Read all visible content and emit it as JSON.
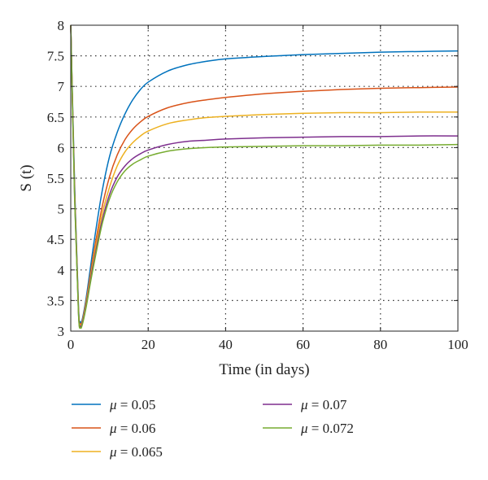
{
  "chart_data": {
    "type": "line",
    "xlabel": "Time (in days)",
    "ylabel": "S (t)",
    "xlim": [
      0,
      100
    ],
    "ylim": [
      3,
      8
    ],
    "x_ticks": [
      0,
      20,
      40,
      60,
      80,
      100
    ],
    "y_ticks": [
      3,
      3.5,
      4,
      4.5,
      5,
      5.5,
      6,
      6.5,
      7,
      7.5,
      8
    ],
    "grid": true,
    "legend_position": "bottom",
    "x": [
      0,
      1,
      2,
      2.5,
      3,
      4,
      5,
      6,
      8,
      10,
      12,
      14,
      16,
      18,
      20,
      25,
      30,
      35,
      40,
      50,
      60,
      70,
      80,
      90,
      100
    ],
    "series": [
      {
        "name": "μ = 0.05",
        "color": "#0072BD",
        "values": [
          8,
          5.4,
          3.4,
          3.15,
          3.2,
          3.55,
          4.0,
          4.45,
          5.25,
          5.85,
          6.25,
          6.55,
          6.78,
          6.95,
          7.07,
          7.25,
          7.35,
          7.41,
          7.45,
          7.49,
          7.52,
          7.54,
          7.56,
          7.57,
          7.58
        ]
      },
      {
        "name": "μ = 0.06",
        "color": "#D95319",
        "values": [
          8,
          5.3,
          3.35,
          3.12,
          3.17,
          3.5,
          3.9,
          4.3,
          5.0,
          5.52,
          5.88,
          6.13,
          6.3,
          6.42,
          6.51,
          6.65,
          6.73,
          6.78,
          6.82,
          6.88,
          6.92,
          6.95,
          6.97,
          6.98,
          6.99
        ]
      },
      {
        "name": "μ = 0.065",
        "color": "#EDB120",
        "values": [
          8,
          5.25,
          3.33,
          3.1,
          3.15,
          3.47,
          3.85,
          4.22,
          4.88,
          5.35,
          5.7,
          5.93,
          6.08,
          6.19,
          6.27,
          6.39,
          6.45,
          6.49,
          6.51,
          6.54,
          6.56,
          6.57,
          6.57,
          6.58,
          6.58
        ]
      },
      {
        "name": "μ = 0.07",
        "color": "#7E2F8E",
        "values": [
          8,
          5.2,
          3.3,
          3.08,
          3.13,
          3.43,
          3.8,
          4.15,
          4.78,
          5.23,
          5.52,
          5.7,
          5.82,
          5.9,
          5.96,
          6.05,
          6.1,
          6.12,
          6.14,
          6.16,
          6.17,
          6.18,
          6.18,
          6.19,
          6.19
        ]
      },
      {
        "name": "μ = 0.072",
        "color": "#77AC30",
        "values": [
          8,
          5.15,
          3.28,
          3.06,
          3.11,
          3.4,
          3.76,
          4.1,
          4.72,
          5.16,
          5.44,
          5.62,
          5.73,
          5.8,
          5.86,
          5.94,
          5.98,
          6.0,
          6.01,
          6.02,
          6.03,
          6.03,
          6.04,
          6.04,
          6.05
        ]
      }
    ]
  }
}
